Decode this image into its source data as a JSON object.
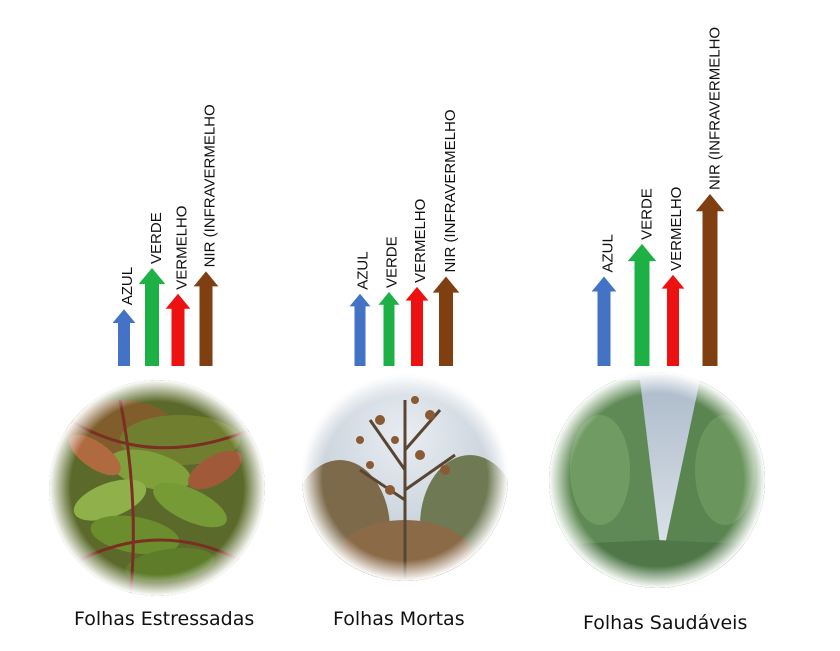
{
  "colors": {
    "blue": "#4472C4",
    "green": "#1DB045",
    "red": "#EE1111",
    "brown": "#7F3F10"
  },
  "panels": [
    {
      "caption": "Folhas Estressadas",
      "image_icon": "stressed-leaves-photo",
      "arrows": [
        {
          "label": "AZUL",
          "color": "blue",
          "level": 0.33
        },
        {
          "label": "VERDE",
          "color": "green",
          "level": 0.57
        },
        {
          "label": "VERMELHO",
          "color": "red",
          "level": 0.42
        },
        {
          "label": "NIR (INFRAVERMELHO",
          "color": "brown",
          "level": 0.55
        }
      ]
    },
    {
      "caption": "Folhas Mortas",
      "image_icon": "dead-leaves-tree-photo",
      "arrows": [
        {
          "label": "AZUL",
          "color": "blue",
          "level": 0.42
        },
        {
          "label": "VERDE",
          "color": "green",
          "level": 0.43
        },
        {
          "label": "VERMELHO",
          "color": "red",
          "level": 0.46
        },
        {
          "label": "NIR (INFRAVERMELHO",
          "color": "brown",
          "level": 0.52
        }
      ]
    },
    {
      "caption": "Folhas Saudáveis",
      "image_icon": "healthy-eucalyptus-row-photo",
      "arrows": [
        {
          "label": "AZUL",
          "color": "blue",
          "level": 0.52
        },
        {
          "label": "VERDE",
          "color": "green",
          "level": 0.71
        },
        {
          "label": "VERMELHO",
          "color": "red",
          "level": 0.53
        },
        {
          "label": "NIR (INFRAVERMELHO",
          "color": "brown",
          "level": 1.0
        }
      ]
    }
  ]
}
